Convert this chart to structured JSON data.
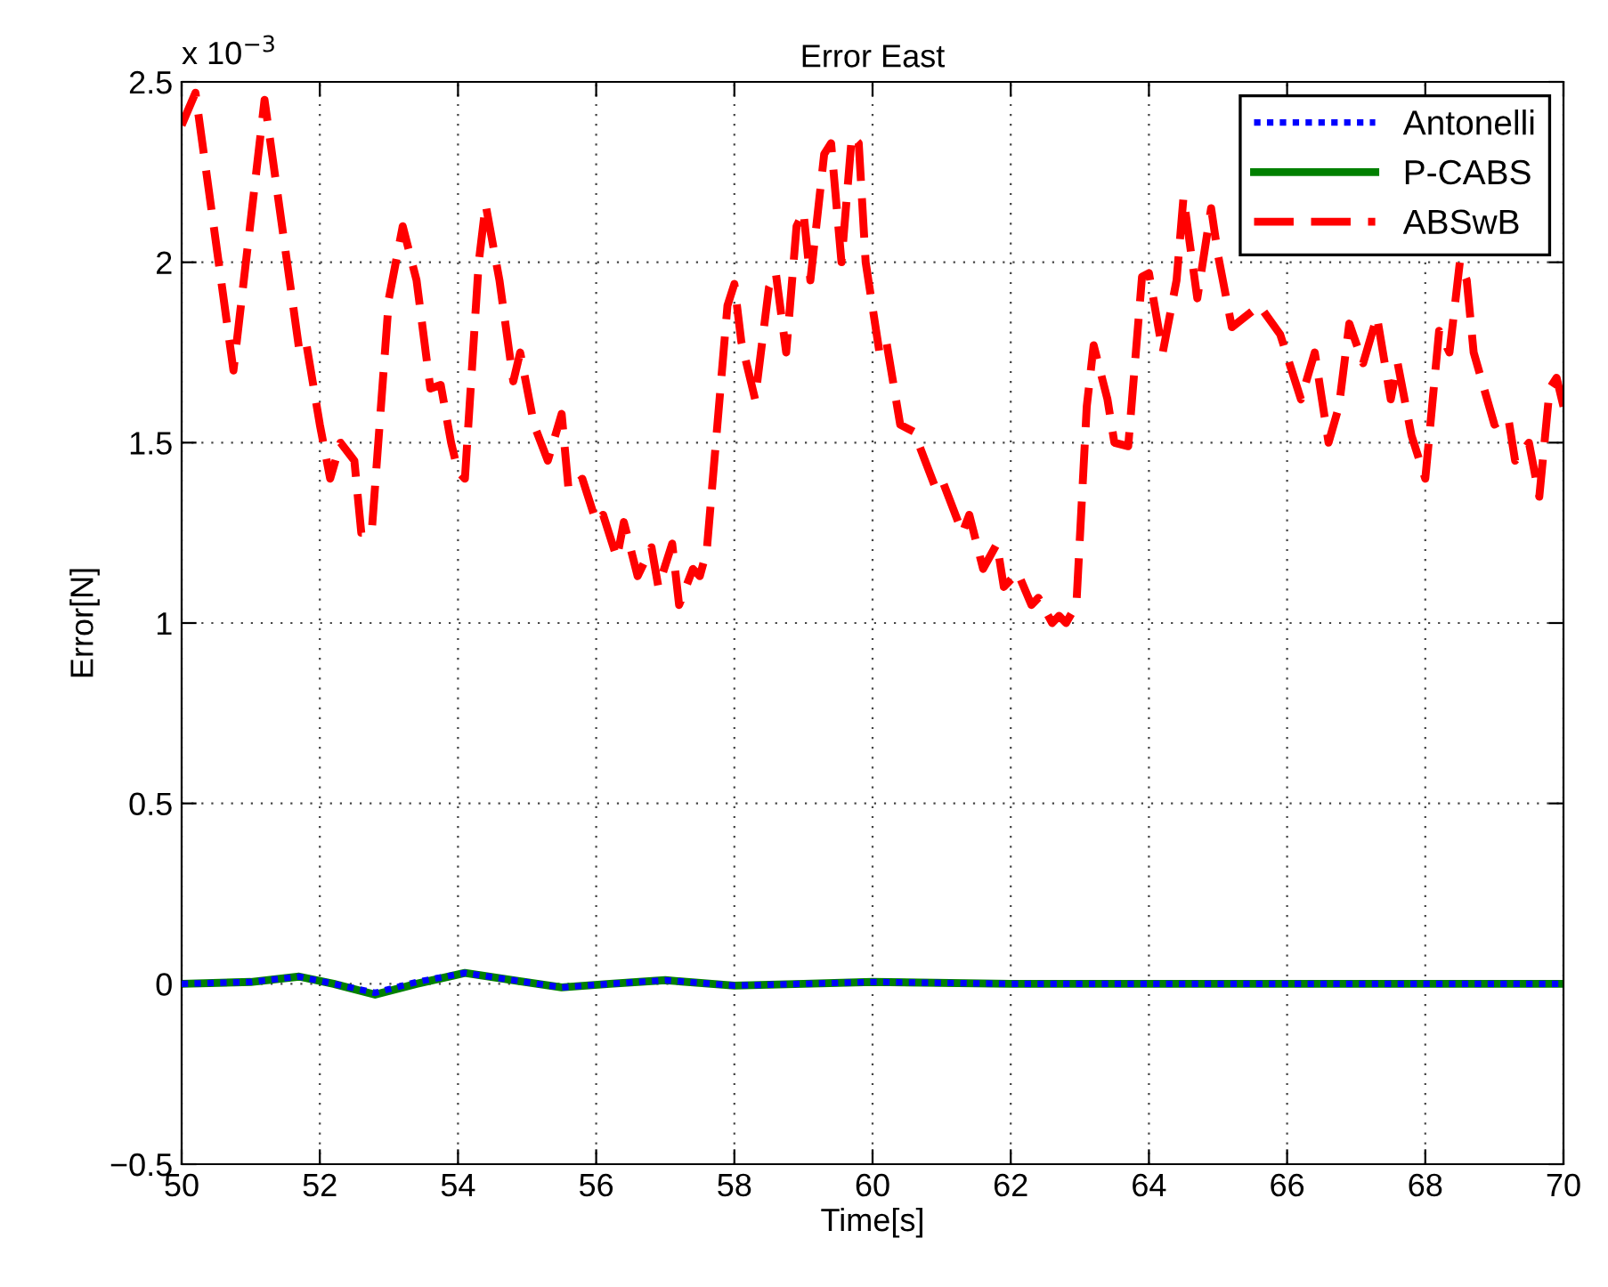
{
  "chart_data": {
    "type": "line",
    "title": "Error East",
    "xlabel": "Time[s]",
    "ylabel": "Error[N]",
    "annotations": [
      "x 10$^{−3}$"
    ],
    "xlim": [
      50,
      70
    ],
    "xticks": [
      50,
      52,
      54,
      56,
      58,
      60,
      62,
      64,
      66,
      68,
      70
    ],
    "ylim": [
      -0.5,
      2.5
    ],
    "yticks": [
      {
        "value": -0.5,
        "label": "−0.5"
      },
      0,
      0.5,
      1,
      1.5,
      2,
      2.5
    ],
    "grid": true,
    "legend": "top right",
    "marker": "none",
    "series": [
      {
        "name": "Antonelli",
        "color": "#0000ff",
        "line_style": "dotted",
        "x": [
          50,
          51,
          51.7,
          52.2,
          52.8,
          53.4,
          54.1,
          54.8,
          55.5,
          56.2,
          57,
          58,
          59,
          60,
          62,
          64,
          66,
          68,
          70
        ],
        "values": [
          0,
          0.005,
          0.02,
          0.0,
          -0.025,
          0.005,
          0.03,
          0.01,
          -0.01,
          0.0,
          0.01,
          -0.005,
          0.0,
          0.005,
          0,
          0,
          0,
          0,
          0
        ]
      },
      {
        "name": "P-CABS",
        "color": "#008000",
        "line_style": "solid",
        "x": [
          50,
          51,
          51.7,
          52.2,
          52.8,
          53.4,
          54.1,
          54.8,
          55.5,
          56.2,
          57,
          58,
          59,
          60,
          62,
          64,
          66,
          68,
          70
        ],
        "values": [
          0,
          0.005,
          0.02,
          0.0,
          -0.03,
          0.0,
          0.03,
          0.01,
          -0.01,
          0.0,
          0.01,
          -0.005,
          0.0,
          0.005,
          0,
          0,
          0,
          0,
          0
        ]
      },
      {
        "name": "ABSwB",
        "color": "#ff0000",
        "line_style": "dashed",
        "x": [
          50,
          50.2,
          50.75,
          51.2,
          51.7,
          51.8,
          52.0,
          52.15,
          52.3,
          52.5,
          52.6,
          52.75,
          53.0,
          53.2,
          53.4,
          53.6,
          53.75,
          53.9,
          54.0,
          54.1,
          54.3,
          54.4,
          54.6,
          54.8,
          54.9,
          55.1,
          55.3,
          55.5,
          55.6,
          55.8,
          56.0,
          56.1,
          56.3,
          56.4,
          56.6,
          56.8,
          56.9,
          57.1,
          57.2,
          57.4,
          57.5,
          57.6,
          57.9,
          58.0,
          58.1,
          58.3,
          58.5,
          58.6,
          58.75,
          58.9,
          59.0,
          59.1,
          59.3,
          59.4,
          59.55,
          59.7,
          59.8,
          59.9,
          60.1,
          60.2,
          60.4,
          60.6,
          60.9,
          61.0,
          61.3,
          61.4,
          61.6,
          61.8,
          61.9,
          62.1,
          62.3,
          62.4,
          62.6,
          62.7,
          62.8,
          62.95,
          63.1,
          63.2,
          63.4,
          63.5,
          63.7,
          63.9,
          64.0,
          64.2,
          64.4,
          64.5,
          64.7,
          64.9,
          65.0,
          65.2,
          65.6,
          65.9,
          66.2,
          66.4,
          66.6,
          66.75,
          66.9,
          67.1,
          67.3,
          67.5,
          67.6,
          67.8,
          68.0,
          68.2,
          68.35,
          68.5,
          68.6,
          68.7,
          69.0,
          69.2,
          69.3,
          69.5,
          69.65,
          69.8,
          69.9,
          70.0
        ],
        "values": [
          2.38,
          2.47,
          1.7,
          2.45,
          1.76,
          1.78,
          1.55,
          1.4,
          1.5,
          1.45,
          1.25,
          1.25,
          1.9,
          2.1,
          1.95,
          1.65,
          1.66,
          1.5,
          1.42,
          1.4,
          2.0,
          2.16,
          1.95,
          1.67,
          1.75,
          1.55,
          1.45,
          1.58,
          1.37,
          1.4,
          1.28,
          1.3,
          1.18,
          1.28,
          1.13,
          1.21,
          1.1,
          1.22,
          1.05,
          1.15,
          1.13,
          1.2,
          1.88,
          1.94,
          1.78,
          1.62,
          1.93,
          1.97,
          1.75,
          2.1,
          2.14,
          1.95,
          2.3,
          2.33,
          2.0,
          2.35,
          2.33,
          2.0,
          1.75,
          1.78,
          1.55,
          1.53,
          1.38,
          1.4,
          1.25,
          1.3,
          1.15,
          1.22,
          1.1,
          1.14,
          1.05,
          1.07,
          1.0,
          1.02,
          1.0,
          1.05,
          1.6,
          1.77,
          1.62,
          1.5,
          1.49,
          1.96,
          1.97,
          1.75,
          1.95,
          2.18,
          1.9,
          2.15,
          2.02,
          1.82,
          1.88,
          1.8,
          1.62,
          1.75,
          1.5,
          1.6,
          1.83,
          1.72,
          1.85,
          1.62,
          1.72,
          1.52,
          1.4,
          1.81,
          1.75,
          2.0,
          1.95,
          1.75,
          1.55,
          1.57,
          1.45,
          1.5,
          1.35,
          1.65,
          1.68,
          1.6
        ]
      }
    ]
  }
}
